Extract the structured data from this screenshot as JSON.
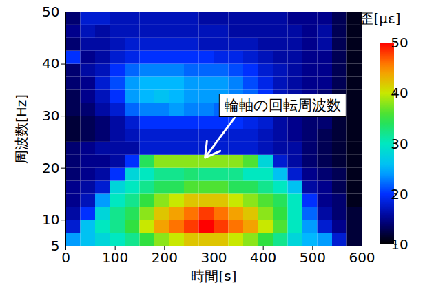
{
  "chart_data": {
    "type": "heatmap",
    "x_label": "時間[s]",
    "y_label": "周波数[Hz]",
    "xlim": [
      0,
      600
    ],
    "xticks": [
      0,
      100,
      200,
      300,
      400,
      500,
      600
    ],
    "ylim": [
      5,
      50
    ],
    "yticks": [
      5,
      10,
      20,
      30,
      40,
      50
    ],
    "color": "jet",
    "x_bins": [
      0,
      30,
      60,
      90,
      120,
      150,
      180,
      210,
      240,
      270,
      300,
      330,
      360,
      390,
      420,
      450,
      480,
      510,
      540,
      570,
      600
    ],
    "y_bins": [
      5,
      7.5,
      10,
      12.5,
      15,
      17.5,
      20,
      22.5,
      25,
      27.5,
      30,
      32.5,
      35,
      37.5,
      40,
      42.5,
      45,
      47.5,
      50
    ],
    "cells": [
      [
        24,
        26,
        28,
        30,
        32,
        35,
        38,
        40,
        42,
        42,
        42,
        40,
        38,
        35,
        32,
        28,
        25,
        24,
        18,
        12
      ],
      [
        18,
        26,
        30,
        32,
        35,
        40,
        44,
        46,
        48,
        50,
        48,
        46,
        44,
        40,
        36,
        30,
        24,
        18,
        15,
        12
      ],
      [
        16,
        20,
        28,
        32,
        34,
        38,
        42,
        44,
        46,
        48,
        46,
        44,
        42,
        38,
        35,
        30,
        22,
        16,
        14,
        12
      ],
      [
        15,
        17,
        24,
        30,
        32,
        35,
        38,
        40,
        42,
        42,
        42,
        40,
        38,
        36,
        34,
        30,
        20,
        15,
        14,
        11
      ],
      [
        15,
        16,
        18,
        28,
        30,
        32,
        34,
        34,
        36,
        36,
        36,
        34,
        34,
        32,
        30,
        26,
        16,
        15,
        13,
        11
      ],
      [
        14,
        15,
        16,
        20,
        28,
        30,
        32,
        32,
        33,
        32,
        32,
        32,
        30,
        30,
        26,
        18,
        15,
        14,
        13,
        11
      ],
      [
        14,
        15,
        15,
        16,
        20,
        34,
        38,
        38,
        38,
        38,
        38,
        38,
        36,
        28,
        18,
        16,
        14,
        13,
        12,
        11
      ],
      [
        14,
        15,
        16,
        16,
        16,
        18,
        18,
        18,
        18,
        18,
        18,
        18,
        18,
        17,
        16,
        16,
        14,
        13,
        12,
        11
      ],
      [
        12,
        13,
        14,
        16,
        17,
        18,
        18,
        18,
        18,
        18,
        18,
        18,
        18,
        17,
        16,
        15,
        14,
        13,
        12,
        11
      ],
      [
        12,
        13,
        14,
        16,
        18,
        20,
        20,
        20,
        20,
        20,
        20,
        20,
        19,
        18,
        16,
        15,
        14,
        14,
        12,
        11
      ],
      [
        13,
        14,
        16,
        18,
        22,
        23,
        23,
        24,
        23,
        23,
        22,
        22,
        20,
        18,
        16,
        15,
        14,
        14,
        12,
        11
      ],
      [
        13,
        15,
        17,
        20,
        24,
        25,
        26,
        25,
        24,
        24,
        24,
        23,
        22,
        20,
        17,
        16,
        15,
        14,
        12,
        11
      ],
      [
        14,
        15,
        18,
        21,
        24,
        25,
        25,
        25,
        24,
        24,
        24,
        23,
        21,
        19,
        17,
        16,
        15,
        15,
        13,
        11
      ],
      [
        14,
        16,
        17,
        20,
        22,
        23,
        23,
        23,
        22,
        22,
        22,
        21,
        20,
        18,
        17,
        16,
        15,
        15,
        13,
        11
      ],
      [
        20,
        15,
        16,
        18,
        19,
        20,
        20,
        20,
        20,
        20,
        19,
        19,
        18,
        17,
        16,
        16,
        15,
        15,
        13,
        11
      ],
      [
        14,
        16,
        16,
        17,
        18,
        18,
        18,
        18,
        18,
        17,
        17,
        17,
        17,
        16,
        16,
        16,
        15,
        16,
        13,
        11
      ],
      [
        15,
        17,
        16,
        17,
        17,
        17,
        17,
        17,
        17,
        17,
        17,
        16,
        16,
        16,
        16,
        16,
        15,
        16,
        13,
        11
      ],
      [
        14,
        18,
        18,
        17,
        17,
        17,
        17,
        17,
        17,
        16,
        16,
        16,
        16,
        16,
        16,
        15,
        15,
        15,
        13,
        11
      ]
    ],
    "colorbar": {
      "label": "歪[με]",
      "lim": [
        10,
        50
      ],
      "ticks": [
        10,
        20,
        30,
        40,
        50
      ]
    },
    "annotation": {
      "text": "輪軸の回転周波数",
      "x": 440,
      "y": 32,
      "arrow_from": [
        342,
        29.7
      ],
      "arrow_to": [
        282,
        22
      ]
    }
  }
}
